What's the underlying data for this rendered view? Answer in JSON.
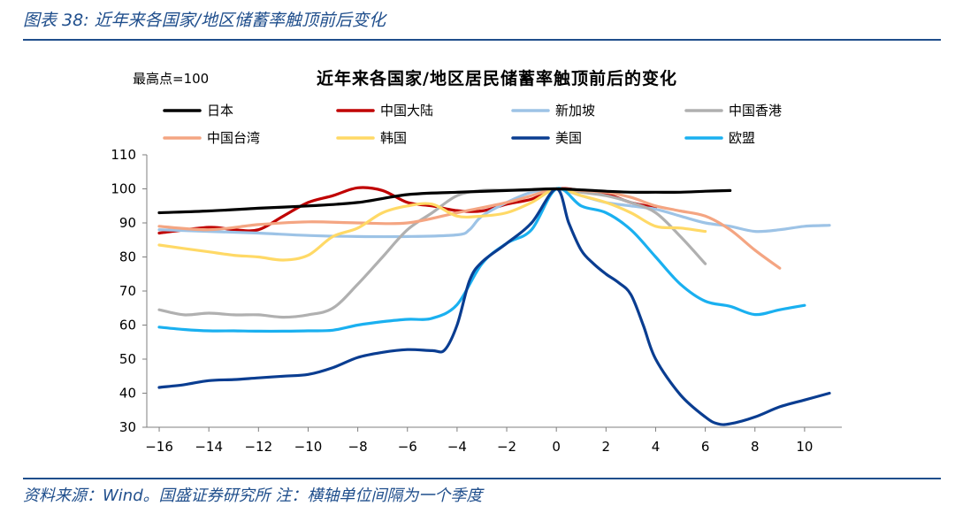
{
  "header": {
    "title": "图表 38:  近年来各国家/地区储蓄率触顶前后变化"
  },
  "footer": {
    "text": "资料来源：Wind。国盛证券研究所 注：横轴单位间隔为一个季度"
  },
  "chart_data": {
    "type": "line",
    "title": "近年来各国家/地区居民储蓄率触顶前后的变化",
    "unit_label": "最高点=100",
    "xlabel": "",
    "ylabel": "",
    "xlim": [
      -16.5,
      11.5
    ],
    "ylim": [
      30,
      110
    ],
    "xticks": [
      -16,
      -14,
      -12,
      -10,
      -8,
      -6,
      -4,
      -2,
      0,
      2,
      4,
      6,
      8,
      10
    ],
    "xtick_labels": [
      "−16",
      "−14",
      "−12",
      "−10",
      "−8",
      "−6",
      "−4",
      "−2",
      "0",
      "2",
      "4",
      "6",
      "8",
      "10"
    ],
    "yticks": [
      30,
      40,
      50,
      60,
      70,
      80,
      90,
      100,
      110
    ],
    "grid": false,
    "legend": "top",
    "series": [
      {
        "name": "日本",
        "color": "#000000",
        "x": [
          -16,
          -14,
          -12,
          -10,
          -8,
          -6,
          -4,
          -2,
          -1,
          0,
          1,
          2,
          3,
          4,
          5,
          6,
          7
        ],
        "y": [
          93,
          93.5,
          94.3,
          95,
          96,
          98.3,
          99,
          99.5,
          99.8,
          100,
          99.7,
          99.3,
          99,
          99,
          99,
          99.3,
          99.5
        ]
      },
      {
        "name": "中国大陆",
        "color": "#c00000",
        "x": [
          -16,
          -14,
          -13,
          -12,
          -11,
          -10,
          -9,
          -8,
          -7,
          -6,
          -5,
          -4,
          -3,
          -2,
          -1,
          0,
          1,
          2,
          3,
          4
        ],
        "y": [
          87,
          88.7,
          88,
          88,
          92,
          96,
          98,
          100.3,
          99.5,
          96,
          95,
          93.6,
          93.5,
          95.5,
          97,
          100,
          99.5,
          98.5,
          96,
          94.5
        ]
      },
      {
        "name": "新加坡",
        "color": "#9dc3e6",
        "x": [
          -16,
          -14,
          -12,
          -10,
          -8,
          -6,
          -4,
          -3.5,
          -3,
          -2,
          -1,
          0,
          1,
          2,
          3,
          4,
          5,
          6,
          7,
          8,
          9,
          10,
          11
        ],
        "y": [
          88,
          87.5,
          87,
          86.3,
          86,
          86,
          86.5,
          88,
          92,
          96,
          99,
          100,
          98,
          96,
          95,
          94,
          92,
          90,
          89,
          87.5,
          88,
          89,
          89.3
        ]
      },
      {
        "name": "中国香港",
        "color": "#b0b0b0",
        "x": [
          -16,
          -15,
          -14,
          -13,
          -12,
          -11,
          -10,
          -9,
          -8,
          -7,
          -6,
          -5,
          -4,
          -3,
          -2,
          -1,
          0,
          1,
          2,
          3,
          4,
          5,
          6
        ],
        "y": [
          64.5,
          63,
          63.5,
          63,
          63,
          62.3,
          63,
          65,
          72,
          80,
          88,
          93,
          98,
          99.5,
          99.6,
          99.6,
          100,
          99,
          98,
          96,
          93,
          86,
          78
        ]
      },
      {
        "name": "中国台湾",
        "color": "#f4a582",
        "x": [
          -16,
          -14,
          -12,
          -10,
          -8,
          -6,
          -4,
          -2,
          -1,
          0,
          1,
          2,
          3,
          4,
          5,
          6,
          7,
          8,
          9
        ],
        "y": [
          89,
          88,
          89.5,
          90.3,
          90,
          90,
          93,
          96,
          98,
          100,
          99.5,
          99,
          97.5,
          95,
          93.5,
          92,
          88,
          82,
          76.7
        ]
      },
      {
        "name": "韩国",
        "color": "#ffd966",
        "x": [
          -16,
          -15,
          -14,
          -13,
          -12,
          -11,
          -10,
          -9,
          -8,
          -7,
          -6,
          -5,
          -4,
          -3,
          -2,
          -1,
          0,
          1,
          2,
          3,
          4,
          5,
          6
        ],
        "y": [
          83.5,
          82.5,
          81.5,
          80.5,
          80,
          79.1,
          80.5,
          86,
          88.5,
          93,
          95,
          95.5,
          92,
          92,
          93,
          96,
          100,
          98,
          96,
          93,
          89,
          88.5,
          87.5
        ]
      },
      {
        "name": "美国",
        "color": "#0a3d91",
        "x": [
          -16,
          -15,
          -14,
          -13,
          -12,
          -11,
          -10,
          -9,
          -8,
          -7,
          -6,
          -5,
          -4.5,
          -4,
          -3.5,
          -3,
          -2,
          -1,
          0,
          0.5,
          1,
          1.5,
          2,
          2.5,
          3,
          3.5,
          4,
          5,
          6,
          6.5,
          7,
          8,
          9,
          10,
          11
        ],
        "y": [
          41.7,
          42.5,
          43.7,
          44,
          44.5,
          45,
          45.5,
          47.5,
          50.5,
          52,
          52.8,
          52.5,
          52.7,
          60,
          73,
          78.5,
          84,
          90,
          100,
          90,
          82,
          78,
          75,
          72.5,
          69,
          60,
          50,
          39.5,
          33,
          31,
          31,
          33,
          36,
          38,
          40
        ]
      },
      {
        "name": "欧盟",
        "color": "#1ab0f0",
        "x": [
          -16,
          -15,
          -14,
          -13,
          -12,
          -11,
          -10,
          -9,
          -8,
          -7,
          -6,
          -5,
          -4,
          -3,
          -2,
          -1,
          0,
          1,
          2,
          3,
          4,
          5,
          6,
          7,
          8,
          9,
          10
        ],
        "y": [
          59.4,
          58.7,
          58.3,
          58.3,
          58.2,
          58.2,
          58.3,
          58.5,
          60,
          61,
          61.7,
          62,
          66,
          78,
          84,
          88,
          100,
          95,
          93,
          88,
          80,
          72,
          67,
          65.5,
          63.1,
          64.5,
          65.8
        ]
      }
    ]
  }
}
